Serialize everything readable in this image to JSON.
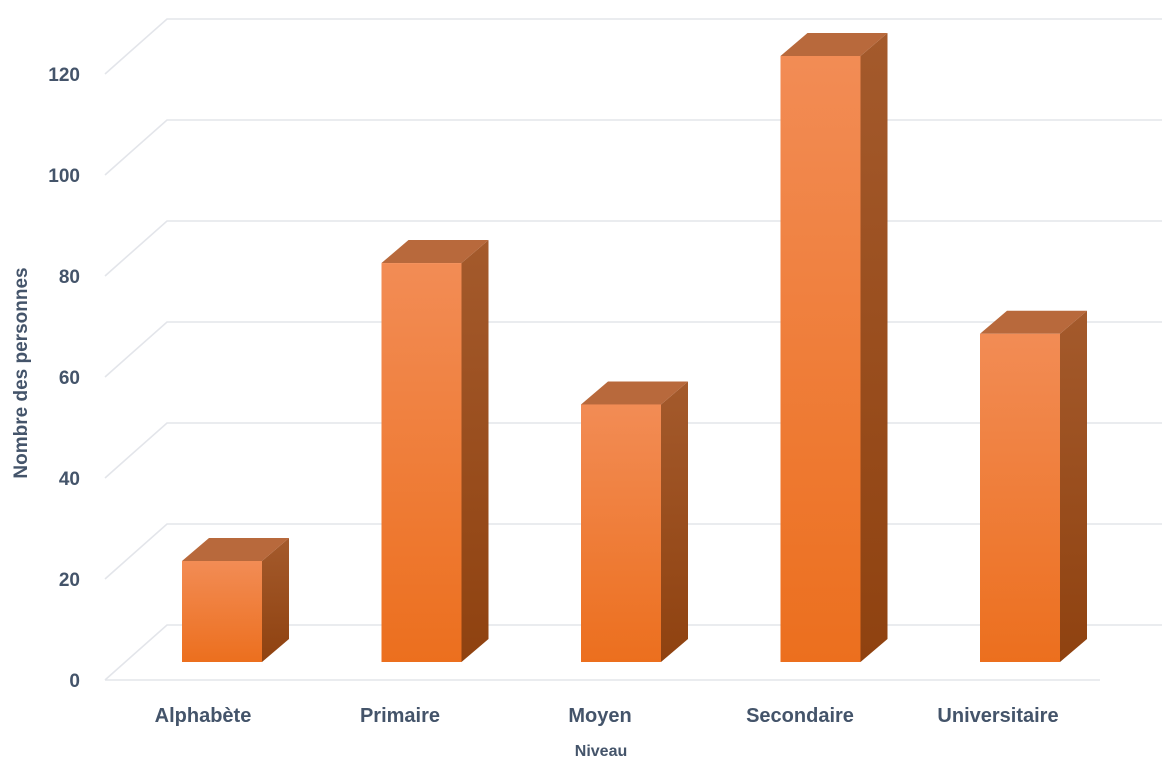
{
  "chart_data": {
    "type": "bar",
    "style": "3d-column",
    "categories": [
      "Alphabète",
      "Primaire",
      "Moyen",
      "Secondaire",
      "Universitaire"
    ],
    "values": [
      20,
      79,
      51,
      120,
      65
    ],
    "xlabel": "Niveau",
    "ylabel": "Nombre des personnes",
    "ylim": [
      0,
      120
    ],
    "yticks": [
      0,
      20,
      40,
      60,
      80,
      100,
      120
    ],
    "grid": true,
    "legend": "none",
    "colors": {
      "front_top": "#f28c55",
      "front_bottom": "#ec6f1e",
      "side_top": "#a45a2c",
      "side_bottom": "#8f4210",
      "top_face": "#b8693c",
      "grid": "#e3e5ea",
      "text": "#44546a"
    }
  }
}
